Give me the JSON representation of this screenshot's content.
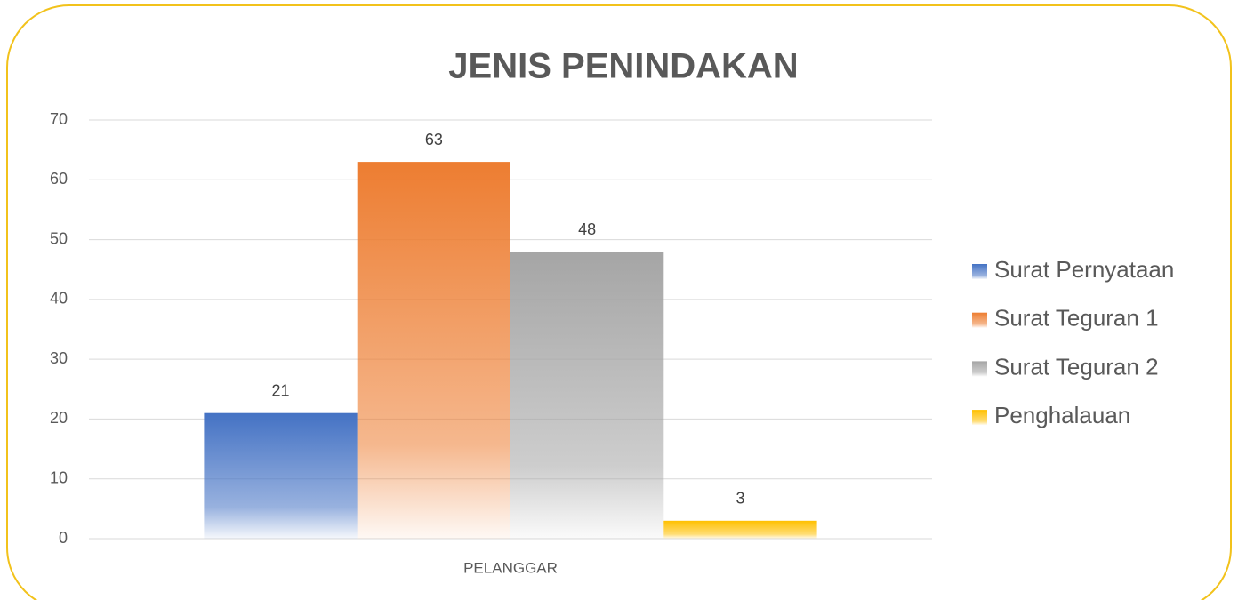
{
  "chart_data": {
    "type": "bar",
    "title": "JENIS PENINDAKAN",
    "categories": [
      "PELANGGAR"
    ],
    "series": [
      {
        "name": "Surat Pernyataan",
        "color": "#4472c4",
        "values": [
          21
        ]
      },
      {
        "name": "Surat Teguran 1",
        "color": "#ed7d31",
        "values": [
          63
        ]
      },
      {
        "name": "Surat Teguran 2",
        "color": "#a5a5a5",
        "values": [
          48
        ]
      },
      {
        "name": "Penghalauan",
        "color": "#ffc000",
        "values": [
          3
        ]
      }
    ],
    "ylim": [
      0,
      70
    ],
    "yticks": [
      0,
      10,
      20,
      30,
      40,
      50,
      60,
      70
    ],
    "grid": true,
    "legend": "right"
  }
}
